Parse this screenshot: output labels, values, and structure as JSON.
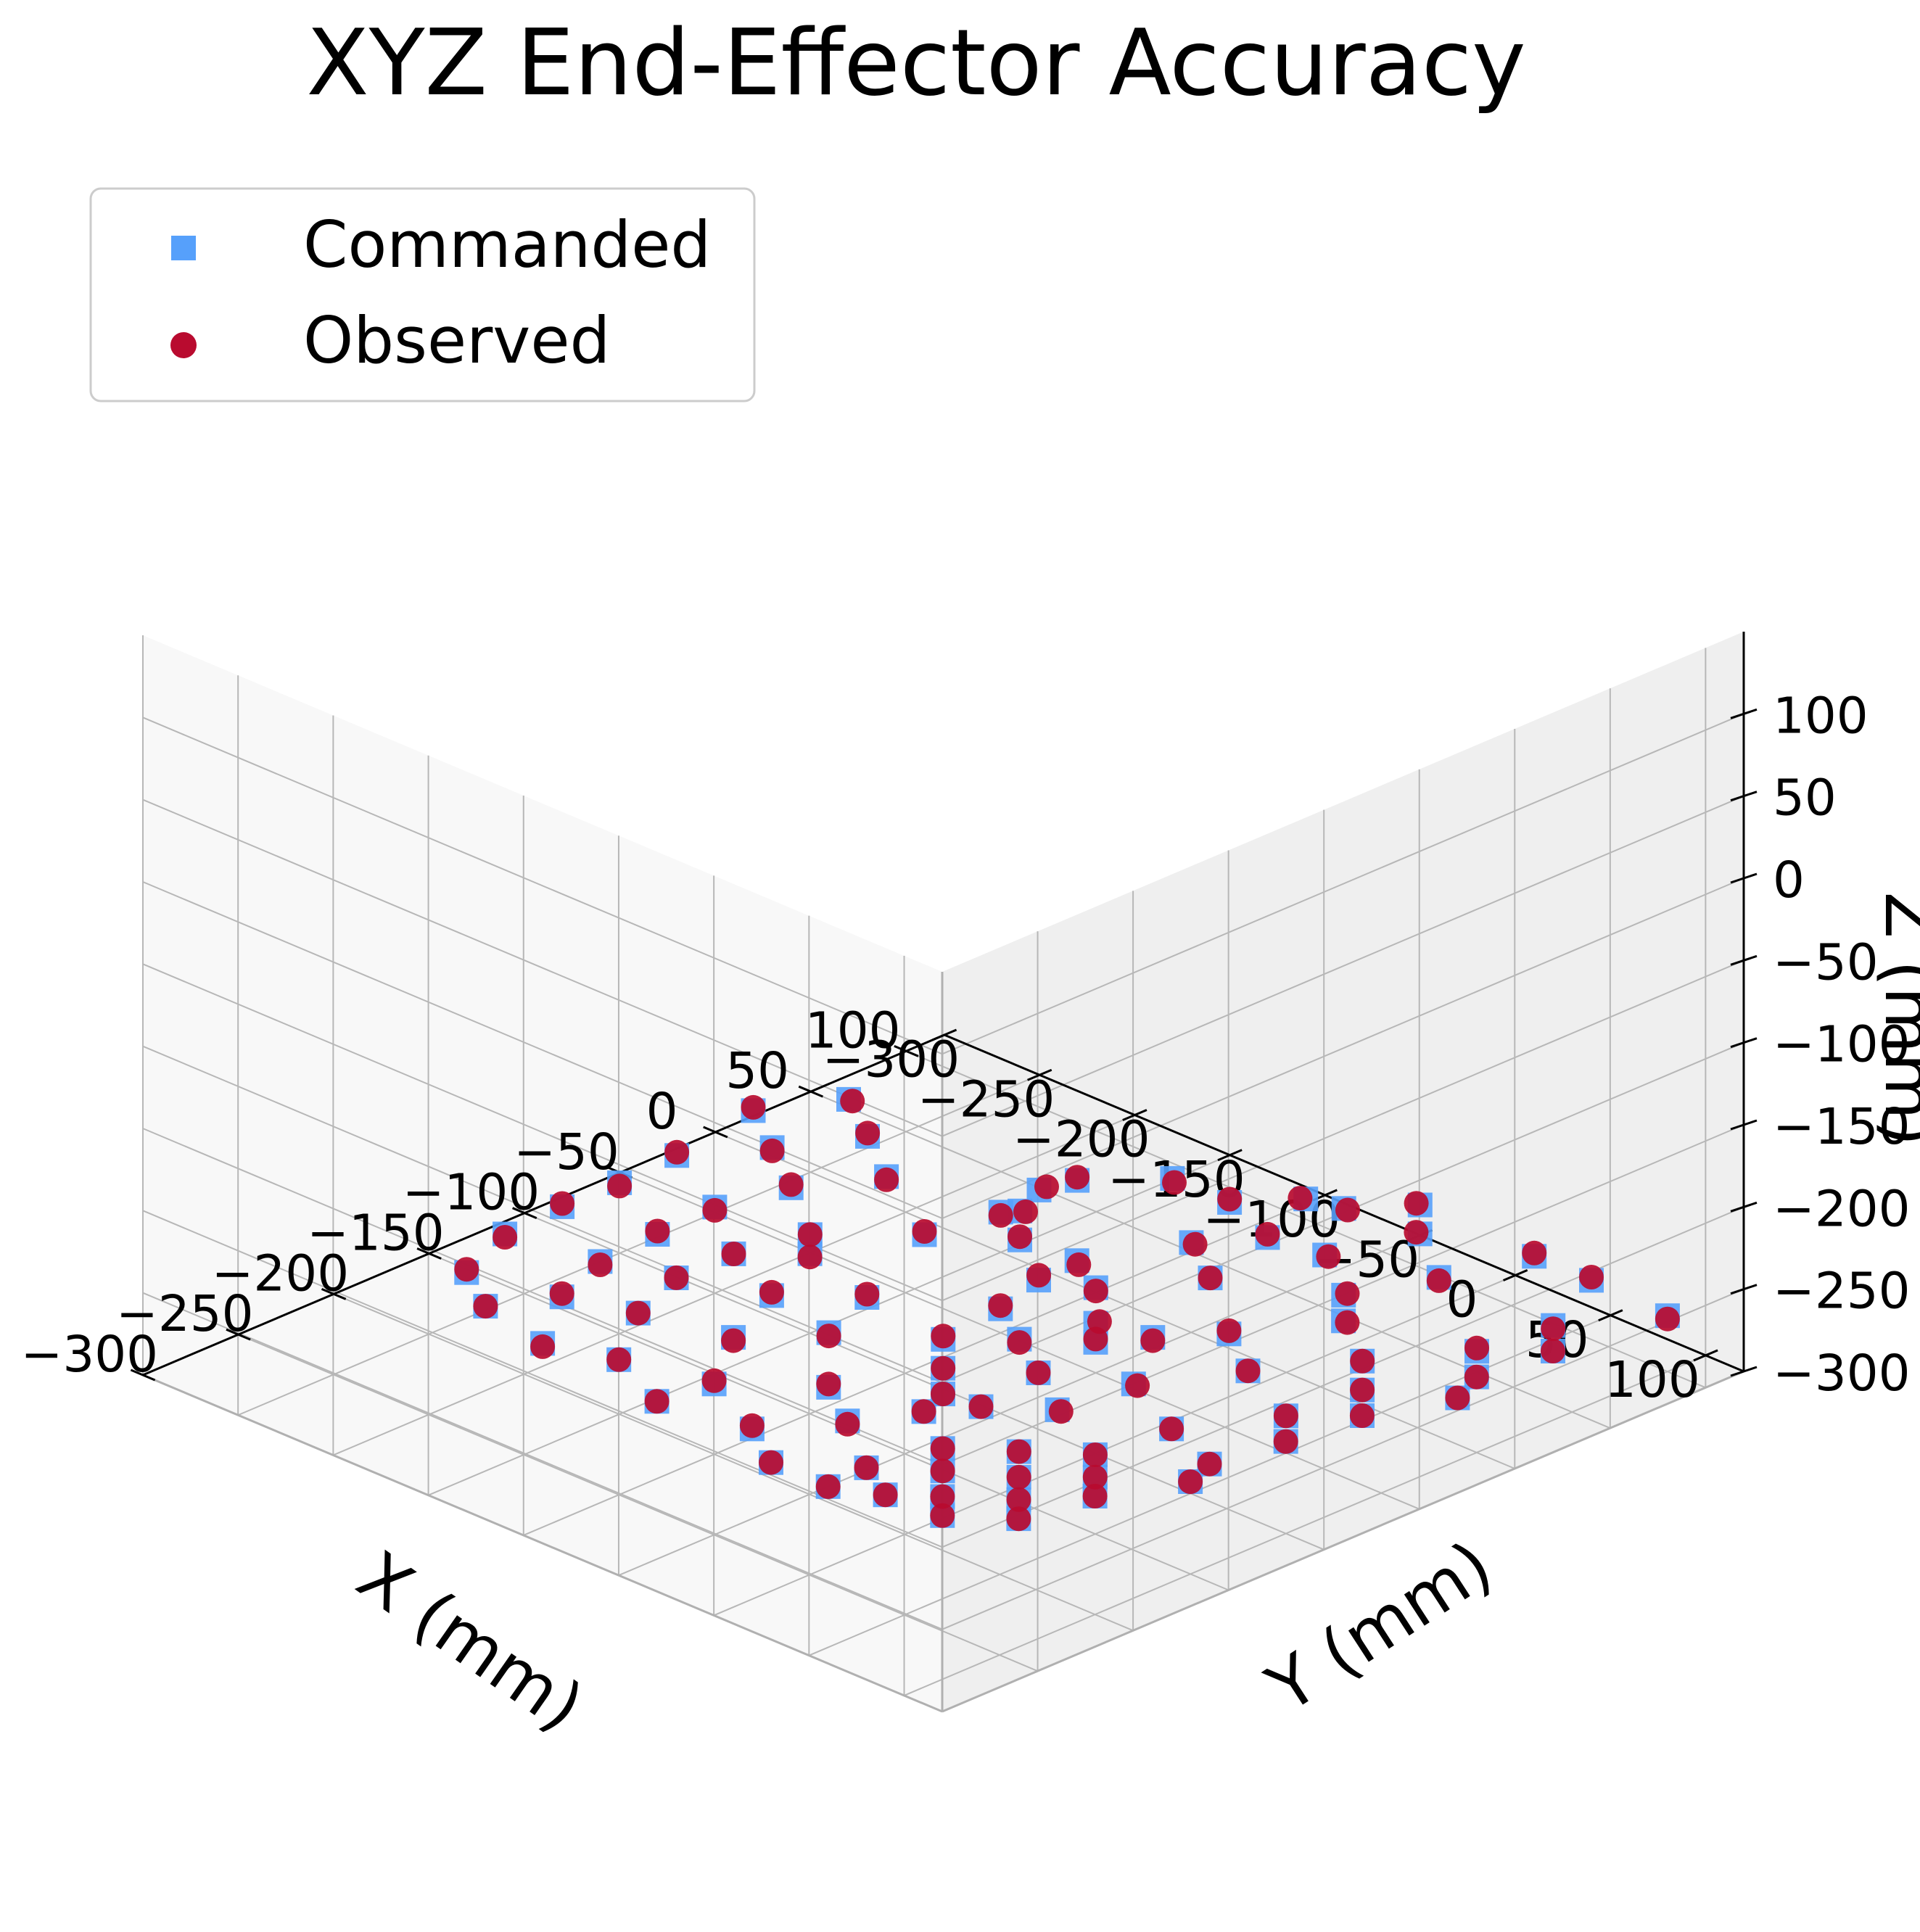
{
  "chart_data": {
    "type": "scatter",
    "projection": "3d",
    "title": "XYZ End-Effector Accuracy",
    "xlabel": "X (mm)",
    "ylabel": "Y (mm)",
    "zlabel": "Z (mm)",
    "xlim": [
      -300,
      120
    ],
    "ylim": [
      -300,
      120
    ],
    "zlim": [
      -300,
      150
    ],
    "xticks": [
      "−300",
      "−250",
      "−200",
      "−150",
      "−100",
      "−50",
      "0",
      "50",
      "100"
    ],
    "yticks": [
      "−300",
      "−250",
      "−200",
      "−150",
      "−100",
      "−50",
      "0",
      "50",
      "100"
    ],
    "zticks": [
      "−300",
      "−250",
      "−200",
      "−150",
      "−100",
      "−50",
      "0",
      "50",
      "100"
    ],
    "grid": true,
    "legend_placement": "upper-left",
    "colors": {
      "commanded": "#56a0fb",
      "observed": "#b90b2f"
    },
    "series": [
      {
        "name": "Commanded",
        "marker": "square",
        "points": [
          [
            20,
            -150,
            -272
          ],
          [
            40,
            -150,
            -276
          ],
          [
            0,
            -140,
            -270
          ],
          [
            -20,
            -120,
            -268
          ],
          [
            60,
            -120,
            -270
          ],
          [
            60,
            -90,
            -270
          ],
          [
            -20,
            -90,
            -266
          ],
          [
            -40,
            -90,
            -268
          ],
          [
            20,
            -70,
            -265
          ],
          [
            80,
            -70,
            -268
          ],
          [
            80,
            -50,
            -264
          ],
          [
            40,
            -50,
            -262
          ],
          [
            0,
            -40,
            -262
          ],
          [
            -60,
            -40,
            -260
          ],
          [
            100,
            -30,
            -262
          ],
          [
            40,
            -20,
            -258
          ],
          [
            80,
            -10,
            -260
          ],
          [
            20,
            10,
            -258
          ],
          [
            60,
            20,
            -262
          ],
          [
            100,
            30,
            -264
          ],
          [
            0,
            30,
            -254
          ],
          [
            -40,
            10,
            -252
          ],
          [
            -60,
            -10,
            -254
          ],
          [
            -80,
            -20,
            -252
          ],
          [
            -100,
            -40,
            -250
          ],
          [
            -80,
            -70,
            -256
          ],
          [
            -40,
            -60,
            -258
          ],
          [
            -120,
            -60,
            -250
          ],
          [
            -140,
            -40,
            -248
          ],
          [
            -120,
            -10,
            -246
          ],
          [
            -100,
            20,
            -248
          ],
          [
            -60,
            40,
            -250
          ],
          [
            -20,
            60,
            -254
          ],
          [
            20,
            80,
            -258
          ],
          [
            60,
            80,
            -262
          ],
          [
            100,
            60,
            -264
          ],
          [
            100,
            100,
            -266
          ],
          [
            -140,
            20,
            -244
          ],
          [
            -160,
            0,
            -242
          ],
          [
            -160,
            -20,
            -244
          ],
          [
            -180,
            -10,
            -240
          ],
          [
            -200,
            20,
            -238
          ],
          [
            -180,
            40,
            -240
          ],
          [
            -160,
            60,
            -242
          ],
          [
            -120,
            60,
            -246
          ],
          [
            -80,
            80,
            -248
          ],
          [
            -40,
            80,
            -252
          ],
          [
            0,
            100,
            -254
          ],
          [
            40,
            100,
            -258
          ],
          [
            -200,
            60,
            -236
          ],
          [
            -220,
            40,
            -232
          ],
          [
            -240,
            20,
            -230
          ],
          [
            -240,
            60,
            -228
          ],
          [
            -220,
            80,
            -230
          ],
          [
            -180,
            80,
            -236
          ],
          [
            -140,
            100,
            -238
          ],
          [
            -100,
            100,
            -244
          ],
          [
            -60,
            100,
            -248
          ],
          [
            -20,
            110,
            -252
          ],
          [
            -260,
            50,
            -222
          ],
          [
            -260,
            80,
            -220
          ],
          [
            -240,
            100,
            -222
          ],
          [
            -200,
            100,
            -228
          ],
          [
            -160,
            110,
            -234
          ],
          [
            -120,
            -100,
            -244
          ],
          [
            -160,
            -80,
            -236
          ],
          [
            -200,
            -40,
            -230
          ],
          [
            -220,
            -10,
            -226
          ],
          [
            -240,
            -60,
            -218
          ],
          [
            -200,
            -90,
            -224
          ],
          [
            -160,
            -110,
            -228
          ],
          [
            -120,
            -130,
            -232
          ],
          [
            -260,
            -20,
            -216
          ],
          [
            -280,
            10,
            -212
          ],
          [
            -280,
            40,
            -212
          ],
          [
            -60,
            -130,
            -250
          ],
          [
            -20,
            -130,
            -256
          ],
          [
            -100,
            -150,
            -240
          ],
          [
            -140,
            -150,
            -232
          ],
          [
            -180,
            -140,
            -222
          ],
          [
            -220,
            -120,
            -214
          ],
          [
            -260,
            -90,
            -208
          ],
          [
            -280,
            -50,
            -204
          ],
          [
            -40,
            -170,
            -244
          ],
          [
            -80,
            -180,
            -236
          ],
          [
            -120,
            -180,
            -228
          ],
          [
            -160,
            -170,
            -220
          ],
          [
            -200,
            -160,
            -212
          ],
          [
            -240,
            -140,
            -204
          ],
          [
            -280,
            -110,
            -198
          ],
          [
            -20,
            -200,
            -244
          ],
          [
            -60,
            -210,
            -236
          ],
          [
            -100,
            -220,
            -226
          ],
          [
            -140,
            -210,
            -218
          ],
          [
            -180,
            -200,
            -208
          ],
          [
            -220,
            -190,
            -200
          ],
          [
            -260,
            -170,
            -194
          ],
          [
            -280,
            -140,
            -190
          ],
          [
            0,
            -230,
            -246
          ],
          [
            -40,
            -240,
            -238
          ]
        ]
      },
      {
        "name": "Observed",
        "marker": "circle",
        "points": [
          [
            22,
            -148,
            -270
          ],
          [
            41,
            -151,
            -275
          ],
          [
            2,
            -139,
            -271
          ],
          [
            -19,
            -121,
            -267
          ],
          [
            59,
            -118,
            -271
          ],
          [
            61,
            -91,
            -269
          ],
          [
            -21,
            -88,
            -267
          ],
          [
            -38,
            -92,
            -267
          ],
          [
            21,
            -69,
            -266
          ],
          [
            78,
            -71,
            -267
          ],
          [
            81,
            -49,
            -265
          ],
          [
            41,
            -51,
            -261
          ],
          [
            1,
            -41,
            -263
          ],
          [
            -59,
            -39,
            -259
          ],
          [
            99,
            -31,
            -261
          ],
          [
            41,
            -19,
            -259
          ],
          [
            79,
            -11,
            -259
          ],
          [
            21,
            11,
            -257
          ],
          [
            59,
            21,
            -263
          ],
          [
            101,
            29,
            -263
          ],
          [
            1,
            31,
            -255
          ],
          [
            -39,
            9,
            -251
          ],
          [
            -61,
            -9,
            -255
          ],
          [
            -79,
            -21,
            -251
          ],
          [
            -101,
            -39,
            -251
          ],
          [
            -79,
            -71,
            -255
          ],
          [
            -41,
            -59,
            -259
          ],
          [
            -119,
            -61,
            -249
          ],
          [
            -139,
            -41,
            -249
          ],
          [
            -121,
            -9,
            -245
          ],
          [
            -99,
            21,
            -249
          ],
          [
            -61,
            41,
            -249
          ],
          [
            -19,
            59,
            -255
          ],
          [
            21,
            79,
            -257
          ],
          [
            59,
            81,
            -263
          ],
          [
            101,
            59,
            -263
          ],
          [
            99,
            101,
            -267
          ],
          [
            -139,
            21,
            -245
          ],
          [
            -161,
            1,
            -241
          ],
          [
            -159,
            -21,
            -245
          ],
          [
            -181,
            -9,
            -239
          ],
          [
            -199,
            19,
            -239
          ],
          [
            -181,
            41,
            -239
          ],
          [
            -159,
            59,
            -243
          ],
          [
            -121,
            61,
            -245
          ],
          [
            -79,
            79,
            -249
          ],
          [
            -41,
            81,
            -251
          ],
          [
            1,
            99,
            -255
          ],
          [
            39,
            101,
            -257
          ],
          [
            -201,
            61,
            -235
          ],
          [
            -219,
            39,
            -233
          ],
          [
            -241,
            21,
            -229
          ],
          [
            -239,
            59,
            -229
          ],
          [
            -221,
            81,
            -229
          ],
          [
            -179,
            79,
            -237
          ],
          [
            -141,
            101,
            -237
          ],
          [
            -99,
            99,
            -245
          ],
          [
            -61,
            101,
            -247
          ],
          [
            -19,
            109,
            -253
          ],
          [
            -259,
            49,
            -223
          ],
          [
            -261,
            81,
            -219
          ],
          [
            -239,
            99,
            -223
          ],
          [
            -201,
            101,
            -227
          ],
          [
            -159,
            109,
            -235
          ],
          [
            -119,
            -101,
            -243
          ],
          [
            -161,
            -79,
            -237
          ],
          [
            -199,
            -41,
            -229
          ],
          [
            -221,
            -9,
            -227
          ],
          [
            -239,
            -61,
            -217
          ],
          [
            -201,
            -89,
            -225
          ],
          [
            -159,
            -111,
            -227
          ],
          [
            -121,
            -129,
            -233
          ],
          [
            -259,
            -21,
            -215
          ],
          [
            -281,
            11,
            -211
          ],
          [
            -279,
            39,
            -213
          ],
          [
            -59,
            -131,
            -249
          ],
          [
            -21,
            -129,
            -257
          ],
          [
            -101,
            -149,
            -239
          ],
          [
            -139,
            -151,
            -233
          ],
          [
            -181,
            -139,
            -221
          ],
          [
            -219,
            -121,
            -215
          ],
          [
            -261,
            -89,
            -207
          ],
          [
            -279,
            -51,
            -205
          ],
          [
            -41,
            -169,
            -245
          ],
          [
            -79,
            -181,
            -235
          ],
          [
            -121,
            -179,
            -229
          ],
          [
            -159,
            -171,
            -219
          ],
          [
            -201,
            -159,
            -213
          ],
          [
            -239,
            -141,
            -203
          ],
          [
            -281,
            -109,
            -199
          ],
          [
            -19,
            -201,
            -243
          ],
          [
            -61,
            -209,
            -237
          ],
          [
            -99,
            -221,
            -225
          ],
          [
            -141,
            -209,
            -219
          ],
          [
            -179,
            -201,
            -207
          ],
          [
            -221,
            -189,
            -201
          ],
          [
            -259,
            -171,
            -193
          ],
          [
            -279,
            -141,
            -191
          ],
          [
            1,
            -229,
            -247
          ],
          [
            -39,
            -241,
            -237
          ]
        ]
      }
    ]
  }
}
